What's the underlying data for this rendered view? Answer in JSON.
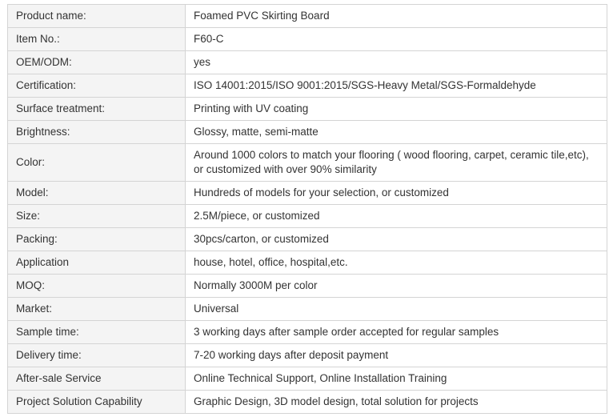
{
  "spec_table": {
    "rows": [
      {
        "label": "Product name:",
        "value": "Foamed PVC Skirting Board"
      },
      {
        "label": "Item No.:",
        "value": "F60-C"
      },
      {
        "label": "OEM/ODM:",
        "value": "yes"
      },
      {
        "label": "Certification:",
        "value": "ISO 14001:2015/ISO 9001:2015/SGS-Heavy Metal/SGS-Formaldehyde"
      },
      {
        "label": "Surface treatment:",
        "value": "Printing with UV coating"
      },
      {
        "label": "Brightness:",
        "value": "Glossy, matte, semi-matte"
      },
      {
        "label": "Color:",
        "value": "Around 1000 colors to match your flooring ( wood flooring, carpet, ceramic tile,etc), or customized with over 90% similarity"
      },
      {
        "label": "Model:",
        "value": "Hundreds of models for your selection, or customized"
      },
      {
        "label": "Size:",
        "value": "2.5M/piece, or customized"
      },
      {
        "label": "Packing:",
        "value": "30pcs/carton, or customized"
      },
      {
        "label": "Application",
        "value": "house, hotel, office, hospital,etc."
      },
      {
        "label": "MOQ:",
        "value": "Normally 3000M per color"
      },
      {
        "label": "Market:",
        "value": "Universal"
      },
      {
        "label": "Sample time:",
        "value": "3 working days after sample order accepted for regular samples"
      },
      {
        "label": "Delivery time:",
        "value": "7-20 working days after deposit payment"
      },
      {
        "label": "After-sale Service",
        "value": "Online Technical Support, Online Installation Training"
      },
      {
        "label": "Project Solution Capability",
        "value": "Graphic Design, 3D model design, total solution for projects"
      }
    ]
  }
}
